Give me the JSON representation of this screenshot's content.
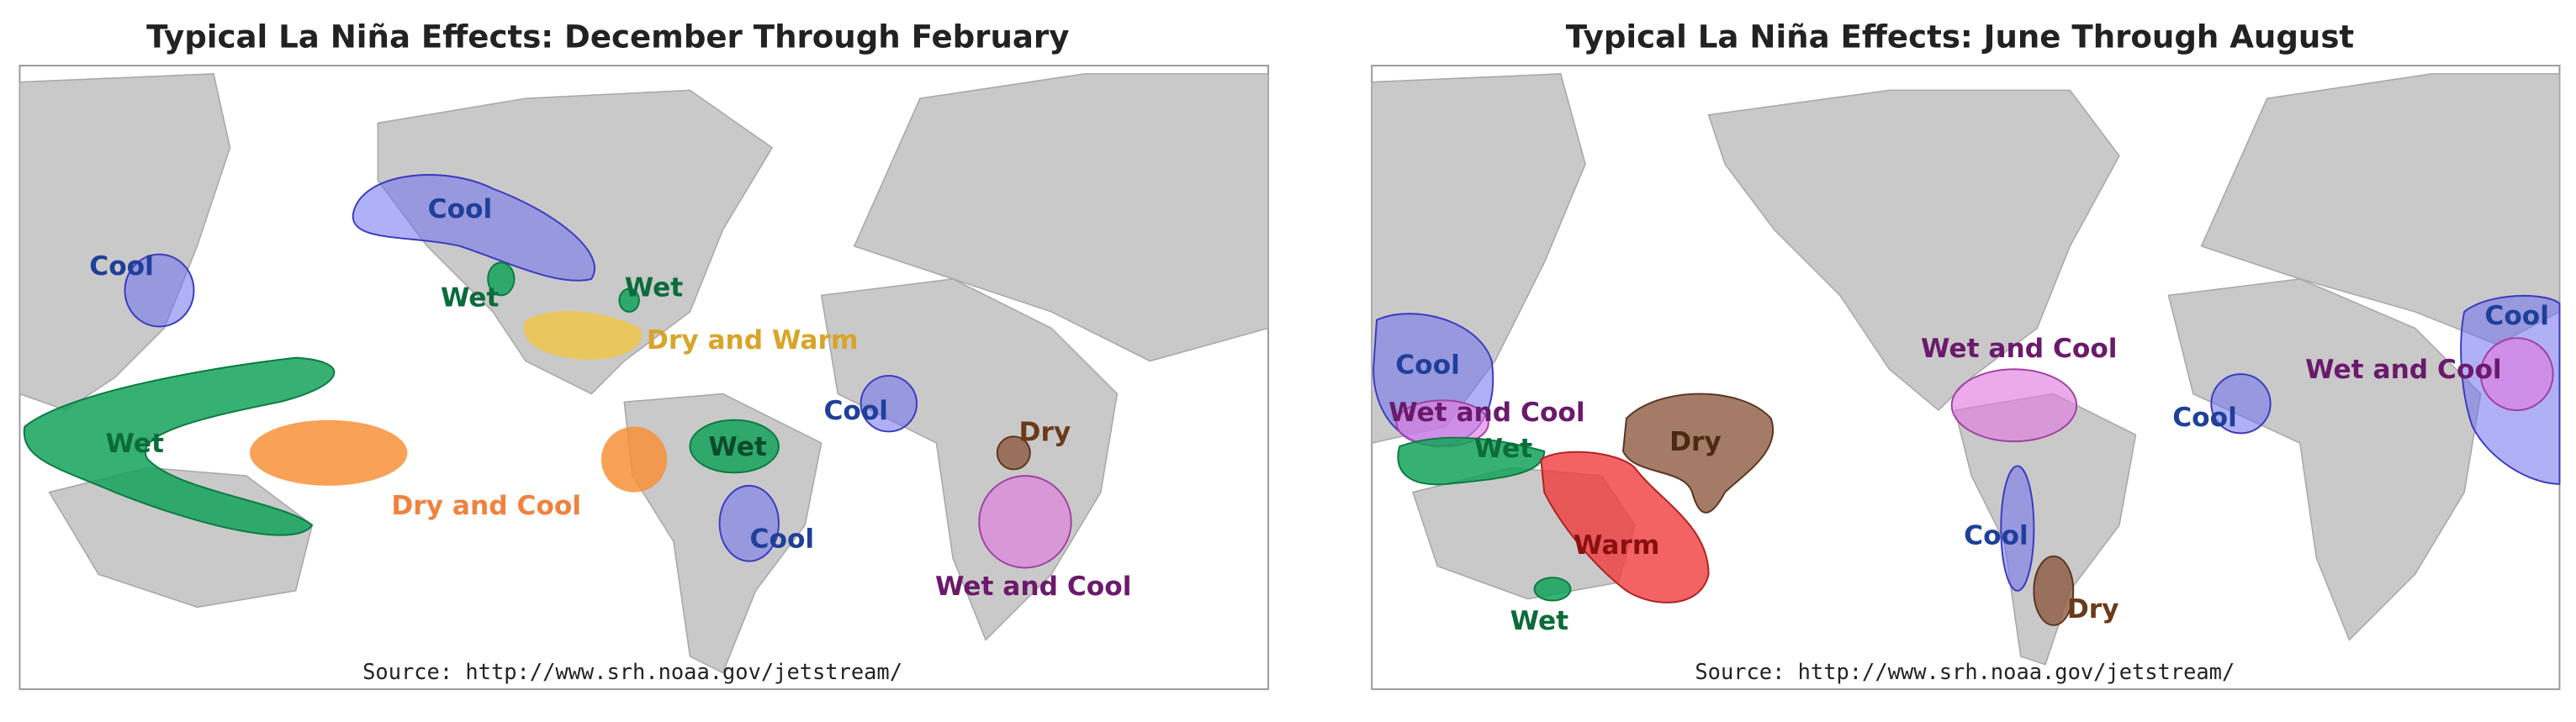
{
  "maps": [
    {
      "title": "Typical La Niña Effects: December Through February",
      "labels": [
        "Cool",
        "Cool",
        "Wet",
        "Wet",
        "Dry and Warm",
        "Wet",
        "Dry and Cool",
        "Wet",
        "Cool",
        "Cool",
        "Dry",
        "Wet and Cool"
      ],
      "source": "Source: http://www.srh.noaa.gov/jetstream/"
    },
    {
      "title": "Typical La Niña Effects: June Through August",
      "labels": [
        "Cool",
        "Wet and Cool",
        "Wet",
        "Dry",
        "Warm",
        "Wet",
        "Wet and Cool",
        "Cool",
        "Dry",
        "Cool",
        "Cool",
        "Wet and Cool"
      ],
      "source": "Source: http://www.srh.noaa.gov/jetstream/"
    }
  ]
}
